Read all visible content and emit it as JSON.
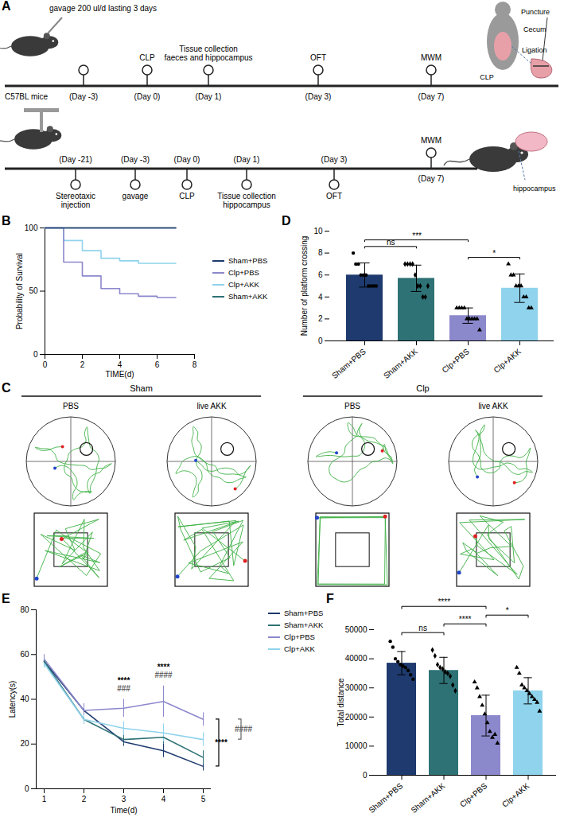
{
  "diagram": {
    "panel": "A",
    "timelines": [
      {
        "start": "C57BL mice",
        "events": [
          {
            "day": "(Day -3)",
            "label": "gavage 200 ul/d lasting 3 days"
          },
          {
            "day": "(Day 0)",
            "label": "CLP"
          },
          {
            "day": "(Day 1)",
            "label": "Tissue collection faeces and hippocampus"
          },
          {
            "day": "(Day 3)",
            "label": "OFT"
          },
          {
            "day": "(Day 7)",
            "label": "MWM"
          }
        ]
      },
      {
        "events": [
          {
            "day": "(Day -21)",
            "label": "Stereotaxic injection"
          },
          {
            "day": "(Day -3)",
            "label": "gavage"
          },
          {
            "day": "(Day 0)",
            "label": "CLP"
          },
          {
            "day": "(Day 1)",
            "label": "Tissue collection hippocampus"
          },
          {
            "day": "(Day 3)",
            "label": "OFT"
          },
          {
            "day": "(Day 7)",
            "label": "MWM"
          }
        ]
      }
    ],
    "icon_labels": {
      "cecum": "Cecum",
      "puncture": "Puncture",
      "ligation": "Ligation",
      "procedure": "CLP",
      "brain": "hippocampus"
    }
  },
  "trajectories": {
    "panel": "C",
    "groups": [
      {
        "title": "Sham",
        "conditions": [
          "PBS",
          "live AKK"
        ]
      },
      {
        "title": "Clp",
        "conditions": [
          "PBS",
          "live AKK"
        ]
      }
    ]
  },
  "chart_data": [
    {
      "panel": "B",
      "type": "line",
      "line_style": "step",
      "xlabel": "TIME(d)",
      "ylabel": "Probability of Survival",
      "x": [
        0,
        1,
        2,
        3,
        4,
        5,
        6,
        7
      ],
      "xlim": [
        0,
        8
      ],
      "xticks": [
        0,
        2,
        4,
        6,
        8
      ],
      "ylim": [
        0,
        100
      ],
      "yticks": [
        0,
        50,
        100
      ],
      "legend": "right",
      "series": [
        {
          "name": "Sham+PBS",
          "color": "#1e3a6e",
          "values": [
            100,
            100,
            100,
            100,
            100,
            100,
            100,
            100
          ]
        },
        {
          "name": "Clp+PBS",
          "color": "#8c88cc",
          "values": [
            100,
            73,
            62,
            52,
            48,
            46,
            45,
            45
          ]
        },
        {
          "name": "Clp+AKK",
          "color": "#8fd3ec",
          "values": [
            100,
            90,
            82,
            76,
            74,
            72,
            72,
            72
          ]
        },
        {
          "name": "Sham+AKK",
          "color": "#2e7276",
          "values": [
            100,
            100,
            100,
            100,
            100,
            100,
            100,
            100
          ]
        }
      ]
    },
    {
      "panel": "D",
      "type": "bar",
      "ylabel": "Number of platform crossing",
      "categories": [
        "Sham+PBS",
        "Sham+AKK",
        "Clp+PBS",
        "Clp+AKK"
      ],
      "values": [
        6,
        5.7,
        2.3,
        4.8
      ],
      "errors": [
        1.1,
        1.2,
        0.7,
        1.3
      ],
      "points": [
        [
          8,
          7,
          7,
          6,
          6,
          6,
          5,
          5,
          5,
          5
        ],
        [
          7,
          7,
          7,
          7,
          6,
          5,
          5,
          4,
          4,
          5
        ],
        [
          3,
          3,
          3,
          3,
          2,
          2,
          2,
          2,
          2,
          1
        ],
        [
          7,
          6,
          6,
          5,
          5,
          5,
          4,
          4,
          3,
          3
        ]
      ],
      "colors": [
        "#1e3a6e",
        "#2e7276",
        "#8c88cc",
        "#8fd3ec"
      ],
      "ylim": [
        0,
        10
      ],
      "yticks": [
        0,
        2,
        4,
        6,
        8,
        10
      ],
      "annotations": [
        {
          "text": "ns",
          "from": "Sham+PBS",
          "to": "Sham+AKK"
        },
        {
          "text": "***",
          "from": "Sham+PBS",
          "to": "Clp+PBS"
        },
        {
          "text": "*",
          "from": "Clp+PBS",
          "to": "Clp+AKK"
        }
      ]
    },
    {
      "panel": "E",
      "type": "line",
      "xlabel": "Time(d)",
      "ylabel": "Latency(s)",
      "x": [
        1,
        2,
        3,
        4,
        5
      ],
      "xlim": [
        0.8,
        5.2
      ],
      "xticks": [
        1,
        2,
        3,
        4,
        5
      ],
      "ylim": [
        0,
        80
      ],
      "yticks": [
        0,
        20,
        40,
        60,
        80
      ],
      "legend": "right",
      "series": [
        {
          "name": "Sham+PBS",
          "color": "#1e3a6e",
          "values": [
            57,
            35,
            21,
            17,
            10
          ],
          "errors": [
            2,
            3,
            2,
            3,
            2
          ]
        },
        {
          "name": "Sham+AKK",
          "color": "#2e7276",
          "values": [
            57,
            31,
            22,
            23,
            14
          ],
          "errors": [
            2,
            2,
            2,
            3,
            3
          ]
        },
        {
          "name": "Clp+PBS",
          "color": "#8c88cc",
          "values": [
            58,
            35,
            36,
            39,
            31
          ],
          "errors": [
            2,
            3,
            4,
            7,
            3
          ]
        },
        {
          "name": "Clp+AKK",
          "color": "#8fd3ec",
          "values": [
            56,
            31,
            27,
            25,
            22
          ],
          "errors": [
            2,
            2,
            3,
            4,
            3
          ]
        }
      ],
      "annotations": [
        {
          "x": 3,
          "text": "****"
        },
        {
          "x": 3,
          "text": "###",
          "color": "#666666"
        },
        {
          "x": 4,
          "text": "****"
        },
        {
          "x": 4,
          "text": "####",
          "color": "#666666"
        },
        {
          "text": "****",
          "from": "Sham+PBS",
          "to": "Clp+PBS"
        },
        {
          "text": "####",
          "from": "Clp+AKK",
          "to": "Clp+PBS",
          "color": "#666666"
        }
      ]
    },
    {
      "panel": "F",
      "type": "bar",
      "ylabel": "Total distance",
      "categories": [
        "Sham+PBS",
        "Sham+AKK",
        "Clp+PBS",
        "Clp+AKK"
      ],
      "values": [
        38500,
        36000,
        20500,
        29000
      ],
      "errors": [
        4000,
        4500,
        7000,
        4500
      ],
      "points": [
        [
          46000,
          44000,
          40000,
          39000,
          38000,
          37500,
          37000,
          36000,
          34500,
          33000
        ],
        [
          43000,
          41000,
          38000,
          37000,
          36500,
          35500,
          35000,
          34000,
          31000,
          29000
        ],
        [
          32000,
          30000,
          27000,
          24000,
          21000,
          18000,
          15000,
          13000,
          14000,
          11000
        ],
        [
          37000,
          35000,
          31000,
          30000,
          29000,
          28000,
          27000,
          26000,
          25000,
          22000
        ]
      ],
      "colors": [
        "#1e3a6e",
        "#2e7276",
        "#8c88cc",
        "#8fd3ec"
      ],
      "ylim": [
        0,
        50000
      ],
      "yticks": [
        0,
        10000,
        20000,
        30000,
        40000,
        50000
      ],
      "annotations": [
        {
          "text": "ns",
          "from": "Sham+PBS",
          "to": "Sham+AKK"
        },
        {
          "text": "****",
          "from": "Sham+PBS",
          "to": "Clp+PBS"
        },
        {
          "text": "****",
          "from": "Sham+AKK",
          "to": "Clp+PBS"
        },
        {
          "text": "*",
          "from": "Clp+PBS",
          "to": "Clp+AKK"
        }
      ]
    }
  ]
}
